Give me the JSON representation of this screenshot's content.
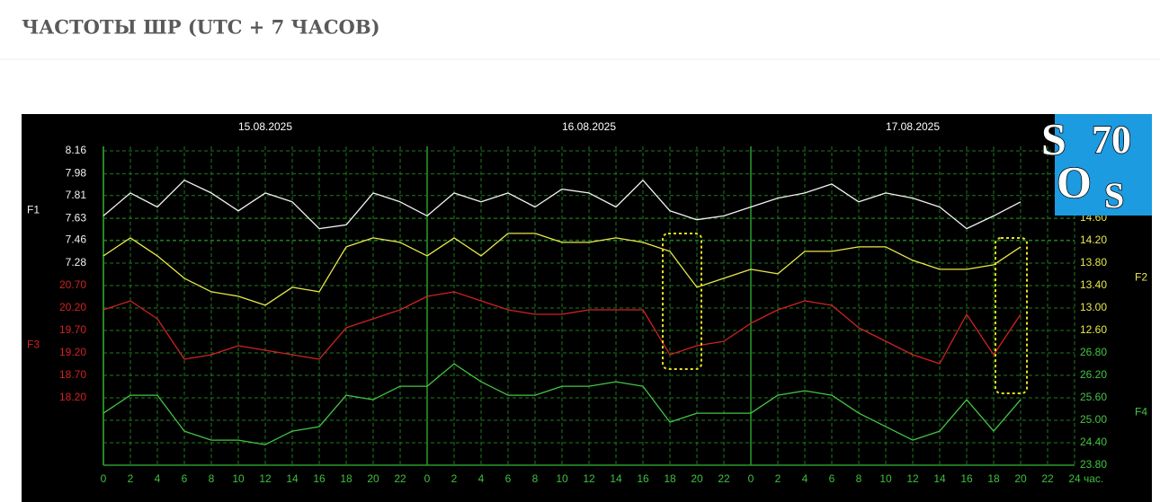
{
  "header": {
    "title": "ЧАСТОТЫ ШР (UTC + 7 ЧАСОВ)"
  },
  "logo": [
    "S",
    "70",
    "O",
    "S"
  ],
  "chart_data": {
    "type": "line",
    "dates": [
      "15.08.2025",
      "16.08.2025",
      "17.08.2025"
    ],
    "x_label": "час.",
    "xlim": [
      0,
      72
    ],
    "xticks": [
      {
        "value": 0,
        "label": "0"
      },
      {
        "value": 2,
        "label": "2"
      },
      {
        "value": 4,
        "label": "4"
      },
      {
        "value": 6,
        "label": "6"
      },
      {
        "value": 8,
        "label": "8"
      },
      {
        "value": 10,
        "label": "10"
      },
      {
        "value": 12,
        "label": "12"
      },
      {
        "value": 14,
        "label": "14"
      },
      {
        "value": 16,
        "label": "16"
      },
      {
        "value": 18,
        "label": "18"
      },
      {
        "value": 20,
        "label": "20"
      },
      {
        "value": 22,
        "label": "22"
      },
      {
        "value": 24,
        "label": "0"
      },
      {
        "value": 26,
        "label": "2"
      },
      {
        "value": 28,
        "label": "4"
      },
      {
        "value": 30,
        "label": "6"
      },
      {
        "value": 32,
        "label": "8"
      },
      {
        "value": 34,
        "label": "10"
      },
      {
        "value": 36,
        "label": "12"
      },
      {
        "value": 38,
        "label": "14"
      },
      {
        "value": 40,
        "label": "16"
      },
      {
        "value": 42,
        "label": "18"
      },
      {
        "value": 44,
        "label": "20"
      },
      {
        "value": 46,
        "label": "22"
      },
      {
        "value": 48,
        "label": "0"
      },
      {
        "value": 50,
        "label": "2"
      },
      {
        "value": 52,
        "label": "4"
      },
      {
        "value": 54,
        "label": "6"
      },
      {
        "value": 56,
        "label": "8"
      },
      {
        "value": 58,
        "label": "10"
      },
      {
        "value": 60,
        "label": "12"
      },
      {
        "value": 62,
        "label": "14"
      },
      {
        "value": 64,
        "label": "16"
      },
      {
        "value": 66,
        "label": "18"
      },
      {
        "value": 68,
        "label": "20"
      },
      {
        "value": 70,
        "label": "22"
      },
      {
        "value": 72,
        "label": "24"
      }
    ],
    "grid": true,
    "x": [
      0,
      2,
      4,
      6,
      8,
      10,
      12,
      14,
      16,
      18,
      20,
      22,
      24,
      26,
      28,
      30,
      32,
      34,
      36,
      38,
      40,
      42,
      44,
      46,
      48,
      50,
      52,
      54,
      56,
      58,
      60,
      62,
      64,
      66,
      68
    ],
    "series": [
      {
        "name": "F1",
        "color": "#f2f2f2",
        "axis": "left",
        "ylim": [
          5.696,
          8.16
        ],
        "yticks": [
          7.28,
          7.46,
          7.63,
          7.81,
          7.98,
          8.16
        ],
        "values": [
          7.65,
          7.83,
          7.72,
          7.93,
          7.83,
          7.69,
          7.83,
          7.76,
          7.55,
          7.58,
          7.83,
          7.76,
          7.65,
          7.83,
          7.76,
          7.83,
          7.72,
          7.86,
          7.83,
          7.72,
          7.93,
          7.69,
          7.62,
          7.65,
          7.72,
          7.79,
          7.83,
          7.9,
          7.76,
          7.83,
          7.79,
          7.72,
          7.55,
          7.65,
          7.76
        ]
      },
      {
        "name": "F2",
        "color": "#e8e84a",
        "axis": "right",
        "ylim": [
          10.2,
          15.8
        ],
        "yticks": [
          {
            "value": 12.6,
            "label": "12.60"
          },
          {
            "value": 13,
            "label": "13.00"
          },
          {
            "value": 13.4,
            "label": "13.40"
          },
          {
            "value": 13.8,
            "label": "13.80"
          },
          {
            "value": 14.2,
            "label": "14.20"
          },
          {
            "value": 14.6,
            "label": "14.60"
          }
        ],
        "values": [
          13.93,
          14.25,
          13.93,
          13.53,
          13.29,
          13.21,
          13.05,
          13.37,
          13.29,
          14.09,
          14.25,
          14.17,
          13.93,
          14.25,
          13.93,
          14.33,
          14.33,
          14.17,
          14.17,
          14.25,
          14.17,
          14.01,
          13.37,
          13.53,
          13.69,
          13.61,
          14.01,
          14.01,
          14.09,
          14.09,
          13.85,
          13.69,
          13.69,
          13.77,
          14.09
        ]
      },
      {
        "name": "F3",
        "color": "#d02222",
        "axis": "left",
        "ylim": [
          16.7,
          23.7
        ],
        "yticks": [
          {
            "value": 18.2,
            "label": "18.20"
          },
          {
            "value": 18.7,
            "label": "18.70"
          },
          {
            "value": 19.2,
            "label": "19.20"
          },
          {
            "value": 19.7,
            "label": "19.70"
          },
          {
            "value": 20.2,
            "label": "20.20"
          },
          {
            "value": 20.7,
            "label": "20.70"
          }
        ],
        "values": [
          20.16,
          20.36,
          19.96,
          19.06,
          19.16,
          19.36,
          19.26,
          19.16,
          19.06,
          19.76,
          19.96,
          20.16,
          20.46,
          20.56,
          20.36,
          20.16,
          20.06,
          20.06,
          20.16,
          20.16,
          20.16,
          19.16,
          19.36,
          19.46,
          19.86,
          20.16,
          20.36,
          20.26,
          19.76,
          19.46,
          19.16,
          18.96,
          20.06,
          19.16,
          20.06
        ]
      },
      {
        "name": "F4",
        "color": "#44c444",
        "axis": "right",
        "ylim": [
          23.8,
          32.2
        ],
        "yticks": [
          {
            "value": 23.8,
            "label": "23.80"
          },
          {
            "value": 24.4,
            "label": "24.40"
          },
          {
            "value": 25,
            "label": "25.00"
          },
          {
            "value": 25.6,
            "label": "25.60"
          },
          {
            "value": 26.2,
            "label": "26.20"
          },
          {
            "value": 26.8,
            "label": "26.80"
          }
        ],
        "values": [
          25.19,
          25.67,
          25.67,
          24.71,
          24.47,
          24.47,
          24.35,
          24.71,
          24.83,
          25.67,
          25.55,
          25.91,
          25.91,
          26.51,
          26.03,
          25.67,
          25.67,
          25.91,
          25.91,
          26.03,
          25.91,
          24.95,
          25.19,
          25.19,
          25.19,
          25.67,
          25.79,
          25.67,
          25.19,
          24.83,
          24.47,
          24.71,
          25.55,
          24.71,
          25.55
        ]
      }
    ]
  }
}
